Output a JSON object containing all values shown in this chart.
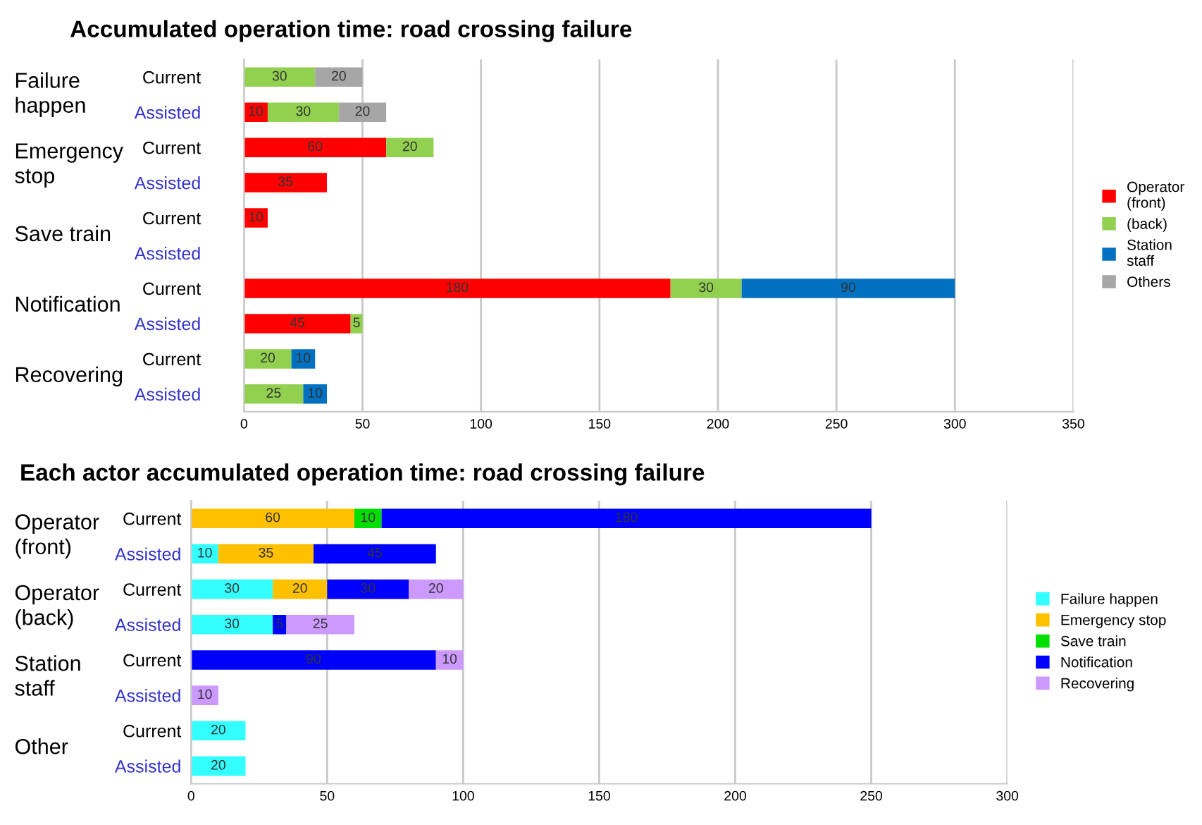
{
  "chart_data": [
    {
      "type": "bar",
      "orientation": "horizontal",
      "stacked": true,
      "title": "Accumulated operation time: road crossing failure",
      "categories": [
        "Current",
        "Assisted",
        "Current",
        "Assisted",
        "Current",
        "Assisted",
        "Current",
        "Assisted",
        "Current",
        "Assisted"
      ],
      "annotations": [
        "Failure happen",
        "Emergency stop",
        "Save train",
        "Notification",
        "Recovering"
      ],
      "series": [
        {
          "name": "Operator (front)",
          "color": "#ff0000",
          "values": [
            null,
            10,
            60,
            35,
            10,
            null,
            180,
            45,
            null,
            null
          ]
        },
        {
          "name": "(back)",
          "color": "#92d050",
          "values": [
            30,
            30,
            20,
            null,
            null,
            null,
            30,
            5,
            20,
            25
          ]
        },
        {
          "name": "Station staff",
          "color": "#0070c0",
          "values": [
            null,
            null,
            null,
            null,
            null,
            null,
            90,
            null,
            10,
            10
          ]
        },
        {
          "name": "Others",
          "color": "#a6a6a6",
          "values": [
            20,
            20,
            null,
            null,
            null,
            null,
            null,
            null,
            null,
            null
          ]
        }
      ],
      "xlim": [
        0,
        350
      ],
      "xticks": [
        0,
        50,
        100,
        150,
        200,
        250,
        300,
        350
      ],
      "grid": "x",
      "legend": "right",
      "data_labels": true
    },
    {
      "type": "bar",
      "orientation": "horizontal",
      "stacked": true,
      "title": "Each actor accumulated operation time: road crossing failure",
      "categories": [
        "Current",
        "Assisted",
        "Current",
        "Assisted",
        "Current",
        "Assisted",
        "Current",
        "Assisted"
      ],
      "annotations": [
        "Operator (front)",
        "Operator (back)",
        "Station staff",
        "Other"
      ],
      "series": [
        {
          "name": "Failure happen",
          "color": "#33ffff",
          "values": [
            null,
            10,
            30,
            30,
            null,
            null,
            20,
            20
          ]
        },
        {
          "name": "Emergency stop",
          "color": "#ffc000",
          "values": [
            60,
            35,
            20,
            null,
            null,
            null,
            null,
            null
          ]
        },
        {
          "name": "Save train",
          "color": "#00e000",
          "values": [
            10,
            null,
            null,
            null,
            null,
            null,
            null,
            null
          ]
        },
        {
          "name": "Notification",
          "color": "#0000ff",
          "values": [
            180,
            45,
            30,
            5,
            90,
            null,
            null,
            null
          ]
        },
        {
          "name": "Recovering",
          "color": "#cc99ff",
          "values": [
            null,
            null,
            20,
            25,
            10,
            10,
            null,
            null
          ]
        }
      ],
      "xlim": [
        0,
        300
      ],
      "xticks": [
        0,
        50,
        100,
        150,
        200,
        250,
        300
      ],
      "grid": "x",
      "legend": "right",
      "data_labels": true
    }
  ]
}
